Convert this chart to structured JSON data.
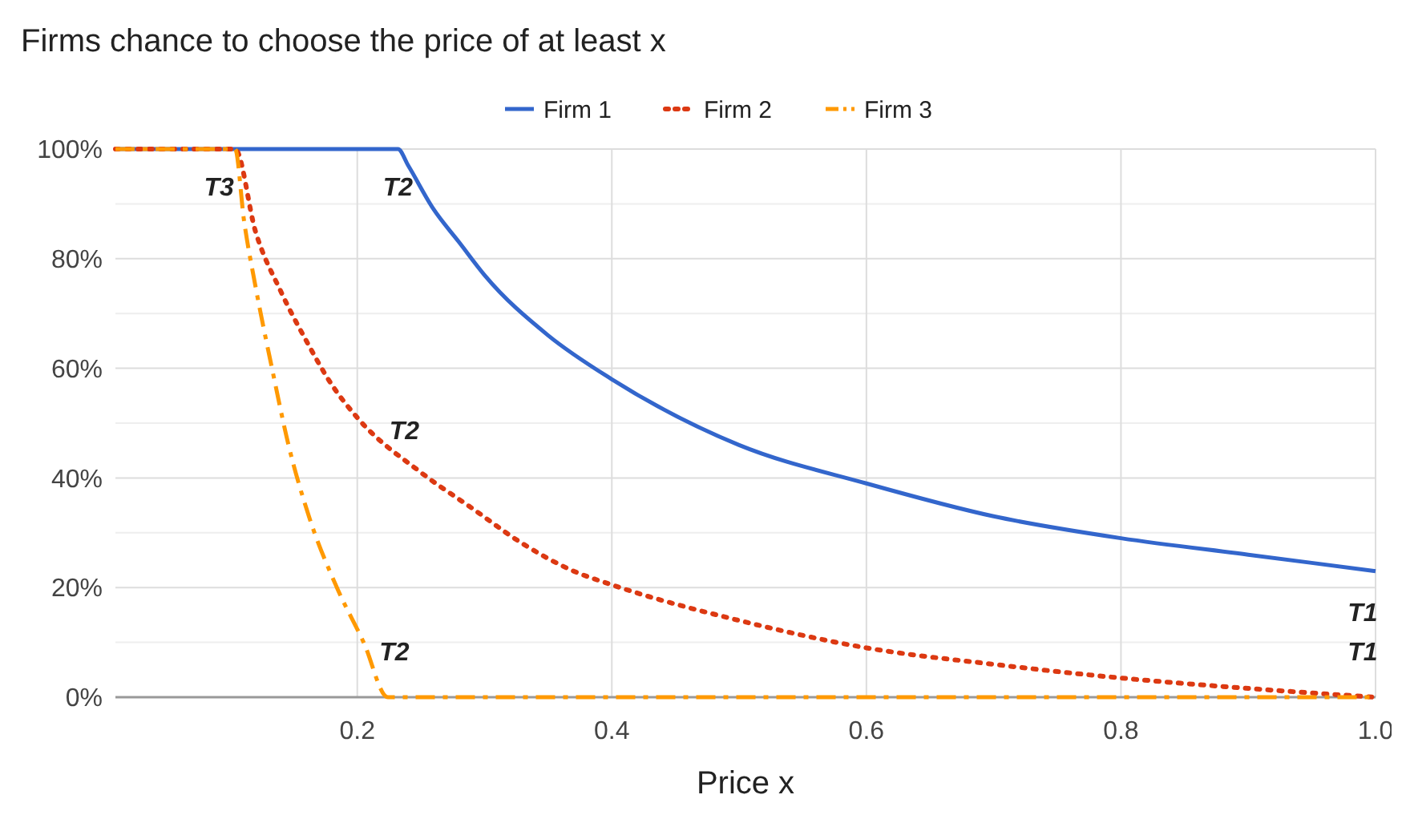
{
  "chart_data": {
    "type": "line",
    "title": "Firms chance to choose the price of at least x",
    "xlabel": "Price x",
    "xlim": [
      0.01,
      1.0
    ],
    "xticks": [
      0.2,
      0.4,
      0.6,
      0.8,
      {
        "value": 1.0,
        "label": "1.0"
      }
    ],
    "ylim": [
      0,
      100
    ],
    "yticks": [
      {
        "value": 0,
        "label": "0%"
      },
      {
        "value": 10,
        "label": null
      },
      {
        "value": 20,
        "label": "20%"
      },
      {
        "value": 30,
        "label": null
      },
      {
        "value": 40,
        "label": "40%"
      },
      {
        "value": 50,
        "label": null
      },
      {
        "value": 60,
        "label": "60%"
      },
      {
        "value": 70,
        "label": null
      },
      {
        "value": 80,
        "label": "80%"
      },
      {
        "value": 90,
        "label": null
      },
      {
        "value": 100,
        "label": "100%"
      }
    ],
    "grid": true,
    "legend": "top",
    "series": [
      {
        "name": "Firm 1",
        "color": "#3366cc",
        "line_style": "solid",
        "x": [
          0.01,
          0.232,
          0.24,
          0.26,
          0.28,
          0.3,
          0.35,
          0.4,
          0.5,
          0.6,
          0.7,
          0.8,
          0.9,
          1.0
        ],
        "values": [
          100,
          100,
          97,
          89,
          83,
          77,
          66,
          58,
          46,
          39,
          33,
          29,
          26,
          23
        ]
      },
      {
        "name": "Firm 2",
        "color": "#dc3912",
        "line_style": "dotted",
        "x": [
          0.01,
          0.104,
          0.12,
          0.14,
          0.16,
          0.18,
          0.2,
          0.25,
          0.29,
          0.33,
          0.37,
          0.4,
          0.5,
          0.6,
          0.7,
          0.8,
          0.9,
          1.0
        ],
        "values": [
          100,
          100,
          85,
          74,
          65,
          57,
          51,
          41,
          34.5,
          28,
          23,
          20.5,
          14,
          9,
          6,
          3.5,
          1.6,
          0
        ]
      },
      {
        "name": "Firm 3",
        "color": "#ff9900",
        "line_style": "dashed",
        "x": [
          0.01,
          0.104,
          0.111,
          0.12,
          0.133,
          0.146,
          0.162,
          0.184,
          0.205,
          0.224,
          0.23,
          1.0
        ],
        "values": [
          100,
          100,
          87,
          75,
          60,
          46,
          33,
          20,
          10,
          0,
          0,
          0
        ]
      }
    ],
    "annotations": [
      {
        "text": "T3",
        "x": 0.104,
        "y": 100
      },
      {
        "text": "T2",
        "x": 0.232,
        "y": 100
      },
      {
        "text": "T2",
        "x": 0.232,
        "y": 43
      },
      {
        "text": "T2",
        "x": 0.224,
        "y": 0
      },
      {
        "text": "T1",
        "x": 1.0,
        "y": 23
      },
      {
        "text": "T1",
        "x": 1.0,
        "y": 0
      }
    ]
  }
}
